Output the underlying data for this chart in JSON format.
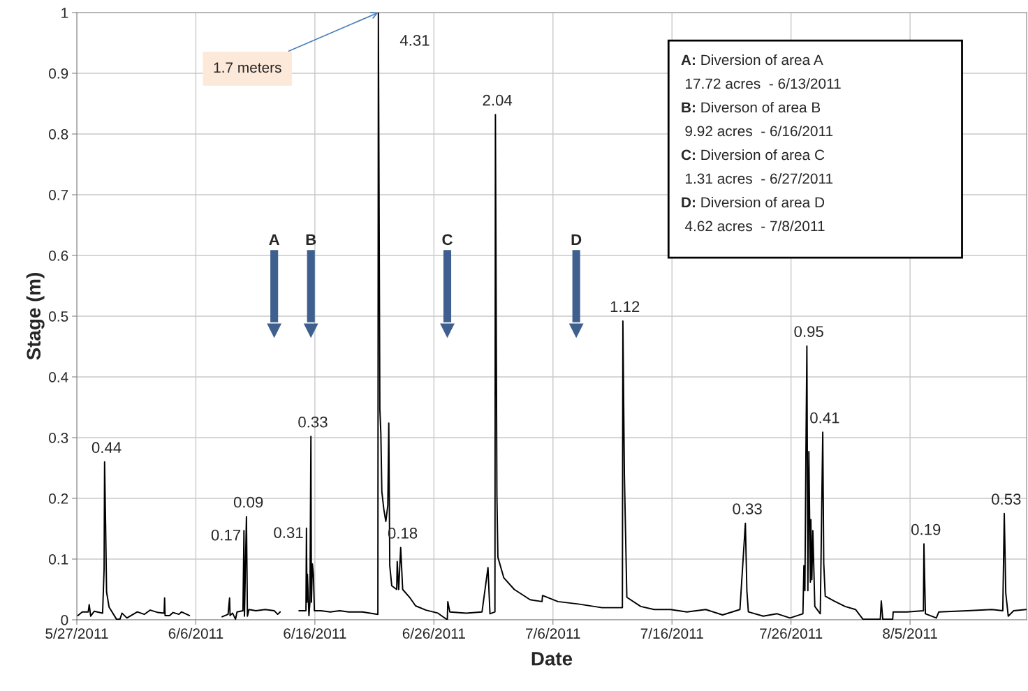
{
  "chart_data": {
    "type": "line",
    "xlabel": "Date",
    "ylabel": "Stage (m)",
    "x": [
      "2011-05-27T02:00",
      "2011-05-27T11:00",
      "2011-05-27T23:00",
      "2011-05-28T01:00",
      "2011-05-28T04:00",
      "2011-05-28T11:00",
      "2011-05-29T04:00",
      "2011-05-29T07:00",
      "2011-05-29T08:00",
      "2011-05-29T10:00",
      "2011-05-29T12:00",
      "2011-05-29T17:00",
      "2011-05-30T08:00",
      "2011-05-30T15:00",
      "2011-05-30T19:00",
      "2011-05-31T05:00",
      "2011-06-01T02:00",
      "2011-06-01T16:00",
      "2011-06-02T04:00",
      "2011-06-02T20:00",
      "2011-06-03T08:00",
      "2011-06-03T09:00",
      "2011-06-03T10:00",
      "2011-06-03T19:00",
      "2011-06-04T02:00",
      "2011-06-04T14:00",
      "2011-06-04T19:00",
      "2011-06-05T11:00",
      "2011-06-06T12:00",
      "2011-06-08T05:00",
      "2011-06-08T17:00",
      "2011-06-08T20:00",
      "2011-06-08T21:00",
      "2011-06-09T02:00",
      "2011-06-09T08:00",
      "2011-06-09T11:00",
      "2011-06-09T23:00",
      "2011-06-10T01:00",
      "2011-06-10T02:00",
      "2011-06-10T06:00",
      "2011-06-10T08:00",
      "2011-06-10T11:00",
      "2011-06-11T01:00",
      "2011-06-11T20:00",
      "2011-06-12T14:00",
      "2011-06-12T21:00",
      "2011-06-13T02:00",
      "2011-06-13T12:00",
      "2011-06-14T16:00",
      "2011-06-15T06:00",
      "2011-06-15T07:00",
      "2011-06-15T08:00",
      "2011-06-15T09:00",
      "2011-06-15T12:00",
      "2011-06-15T14:00",
      "2011-06-15T16:00",
      "2011-06-15T17:00",
      "2011-06-15T19:00",
      "2011-06-15T21:00",
      "2011-06-15T23:00",
      "2011-06-16T12:00",
      "2011-06-17T07:00",
      "2011-06-18T02:00",
      "2011-06-18T20:00",
      "2011-06-20T00:00",
      "2011-06-21T07:00",
      "2011-06-21T08:00",
      "2011-06-21T11:00",
      "2011-06-21T13:00",
      "2011-06-21T15:00",
      "2011-06-21T19:00",
      "2011-06-21T23:00",
      "2011-06-22T03:00",
      "2011-06-22T05:00",
      "2011-06-22T07:00",
      "2011-06-22T11:00",
      "2011-06-22T21:00",
      "2011-06-22T22:00",
      "2011-06-23T01:00",
      "2011-06-23T05:00",
      "2011-06-23T09:00",
      "2011-06-23T23:00",
      "2011-06-24T11:00",
      "2011-06-25T08:00",
      "2011-06-26T08:00",
      "2011-06-27T03:00",
      "2011-06-27T04:00",
      "2011-06-27T08:00",
      "2011-06-28T17:00",
      "2011-06-30T01:00",
      "2011-06-30T13:00",
      "2011-06-30T17:00",
      "2011-07-01T03:00",
      "2011-07-01T04:00",
      "2011-07-01T07:00",
      "2011-07-01T09:00",
      "2011-07-01T21:00",
      "2011-07-02T18:00",
      "2011-07-04T02:00",
      "2011-07-05T02:00",
      "2011-07-05T03:00",
      "2011-07-06T10:00",
      "2011-07-08T03:00",
      "2011-07-10T03:00",
      "2011-07-11T20:00",
      "2011-07-11T21:00",
      "2011-07-12T00:00",
      "2011-07-12T02:00",
      "2011-07-12T05:00",
      "2011-07-13T09:00",
      "2011-07-14T12:00",
      "2011-07-15T21:00",
      "2011-07-17T06:00",
      "2011-07-18T20:00",
      "2011-07-20T06:00",
      "2011-07-21T17:00",
      "2011-07-22T04:00",
      "2011-07-22T07:00",
      "2011-07-22T10:00",
      "2011-07-23T16:00",
      "2011-07-24T20:00",
      "2011-07-25T22:00",
      "2011-07-27T00:00",
      "2011-07-27T02:00",
      "2011-07-27T04:00",
      "2011-07-27T06:00",
      "2011-07-27T08:00",
      "2011-07-27T10:00",
      "2011-07-27T12:00",
      "2011-07-27T15:00",
      "2011-07-27T16:00",
      "2011-07-27T18:00",
      "2011-07-27T20:00",
      "2011-07-28T00:00",
      "2011-07-28T11:00",
      "2011-07-28T16:00",
      "2011-07-28T18:00",
      "2011-07-28T21:00",
      "2011-07-29T15:00",
      "2011-07-30T13:00",
      "2011-07-31T10:00",
      "2011-08-01T01:00",
      "2011-08-02T12:00",
      "2011-08-02T14:00",
      "2011-08-02T17:00",
      "2011-08-03T13:00",
      "2011-08-03T14:00",
      "2011-08-04T18:00",
      "2011-08-06T03:00",
      "2011-08-06T04:00",
      "2011-08-06T07:00",
      "2011-08-07T05:00",
      "2011-08-07T10:00",
      "2011-08-09T20:00",
      "2011-08-11T21:00",
      "2011-08-12T19:00",
      "2011-08-12T22:00",
      "2011-08-13T01:00",
      "2011-08-13T06:00",
      "2011-08-13T17:00",
      "2011-08-14T18:00"
    ],
    "series": [
      {
        "color": "#000000",
        "values": [
          0.007,
          0.013,
          0.013,
          0.025,
          0.006,
          0.014,
          0.011,
          0.084,
          0.26,
          0.159,
          0.046,
          0.021,
          0.001,
          0.001,
          0.011,
          0.003,
          0.013,
          0.009,
          0.016,
          0.012,
          0.011,
          0.036,
          0.007,
          0.007,
          0.012,
          0.009,
          0.013,
          0.007,
          null,
          0.005,
          0.009,
          0.036,
          0.007,
          0.011,
          0.001,
          0.013,
          0.015,
          0.147,
          0.006,
          0.17,
          0.006,
          0.017,
          0.015,
          0.017,
          0.015,
          0.009,
          0.013,
          null,
          0.015,
          0.015,
          0.151,
          0.029,
          0.075,
          0.007,
          0.029,
          0.302,
          0.029,
          0.092,
          0.075,
          0.015,
          0.015,
          0.013,
          0.015,
          0.013,
          0.013,
          0.009,
          1.0,
          0.347,
          0.307,
          0.211,
          0.182,
          0.162,
          0.188,
          0.324,
          0.089,
          0.056,
          0.05,
          0.096,
          0.05,
          0.119,
          0.05,
          0.037,
          0.023,
          0.016,
          0.011,
          0.0,
          0.03,
          0.013,
          0.011,
          0.013,
          0.086,
          0.01,
          0.013,
          0.832,
          0.205,
          0.103,
          0.069,
          0.05,
          0.033,
          0.03,
          0.04,
          0.03,
          0.026,
          0.02,
          0.02,
          0.492,
          0.241,
          0.159,
          0.037,
          0.022,
          0.017,
          0.017,
          0.013,
          0.017,
          0.008,
          0.017,
          0.159,
          0.048,
          0.013,
          0.006,
          0.01,
          0.003,
          0.01,
          0.089,
          0.048,
          0.269,
          0.451,
          0.048,
          0.277,
          0.062,
          0.165,
          0.066,
          0.147,
          0.022,
          0.01,
          0.309,
          0.093,
          0.039,
          0.031,
          0.022,
          0.017,
          0.001,
          0.001,
          0.031,
          0.001,
          0.001,
          0.013,
          0.013,
          0.015,
          0.125,
          0.01,
          0.003,
          0.013,
          0.015,
          0.017,
          0.015,
          0.175,
          0.044,
          0.006,
          0.015,
          0.017
        ]
      }
    ],
    "xlim": [
      "2011-05-27",
      "2011-08-14T19:00"
    ],
    "xticks": [
      {
        "value": "2011-05-27",
        "label": "5/27/2011"
      },
      {
        "value": "2011-06-06",
        "label": "6/6/2011"
      },
      {
        "value": "2011-06-16",
        "label": "6/16/2011"
      },
      {
        "value": "2011-06-26",
        "label": "6/26/2011"
      },
      {
        "value": "2011-07-06",
        "label": "7/6/2011"
      },
      {
        "value": "2011-07-16",
        "label": "7/16/2011"
      },
      {
        "value": "2011-07-26",
        "label": "7/26/2011"
      },
      {
        "value": "2011-08-05",
        "label": "8/5/2011"
      }
    ],
    "ylim": [
      0,
      1
    ],
    "yticks": [
      0,
      0.1,
      0.2,
      0.3,
      0.4,
      0.5,
      0.6,
      0.7,
      0.8,
      0.9,
      1
    ],
    "grid": true,
    "ref_lines": [
      {
        "axis": "x",
        "value": "2011-06-12T14:00",
        "label": "A",
        "color": "#3f5f8f"
      },
      {
        "axis": "x",
        "value": "2011-06-15T16:00",
        "label": "B",
        "color": "#3f5f8f"
      },
      {
        "axis": "x",
        "value": "2011-06-27T03:00",
        "label": "C",
        "color": "#3f5f8f"
      },
      {
        "axis": "x",
        "value": "2011-07-07T23:00",
        "label": "D",
        "color": "#3f5f8f"
      }
    ],
    "annotations": [
      {
        "text": "0.44",
        "x": "2011-05-29T08:00",
        "y": 0.26
      },
      {
        "text": "0.17",
        "x": "2011-06-10T01:00",
        "y": 0.147
      },
      {
        "text": "0.09",
        "x": "2011-06-10T06:00",
        "y": 0.17
      },
      {
        "text": "0.31",
        "x": "2011-06-15T07:00",
        "y": 0.151
      },
      {
        "text": "0.33",
        "x": "2011-06-15T16:00",
        "y": 0.302
      },
      {
        "text": "4.31",
        "x": "2011-06-21T08:00",
        "y": 1.0
      },
      {
        "text": "1.7 meters",
        "x": "2011-06-21T08:00",
        "y": 1.0
      },
      {
        "text": "0.18",
        "x": "2011-06-23T05:00",
        "y": 0.119
      },
      {
        "text": "2.04",
        "x": "2011-07-01T04:00",
        "y": 0.832
      },
      {
        "text": "1.12",
        "x": "2011-07-11T21:00",
        "y": 0.492
      },
      {
        "text": "0.33",
        "x": "2011-07-22T04:00",
        "y": 0.159
      },
      {
        "text": "0.95",
        "x": "2011-07-27T08:00",
        "y": 0.451
      },
      {
        "text": "0.41",
        "x": "2011-07-28T16:00",
        "y": 0.309
      },
      {
        "text": "0.19",
        "x": "2011-08-06T04:00",
        "y": 0.125
      },
      {
        "text": "0.53",
        "x": "2011-08-12T22:00",
        "y": 0.175
      },
      "A: Diversion of area A",
      "17.72 acres  - 6/13/2011",
      "B: Diverson of area B",
      "9.92 acres  - 6/16/2011",
      "C: Diversion of area C",
      "1.31 acres  - 6/27/2011",
      "D: Diversion of area D",
      "4.62 acres  - 7/8/2011"
    ]
  }
}
